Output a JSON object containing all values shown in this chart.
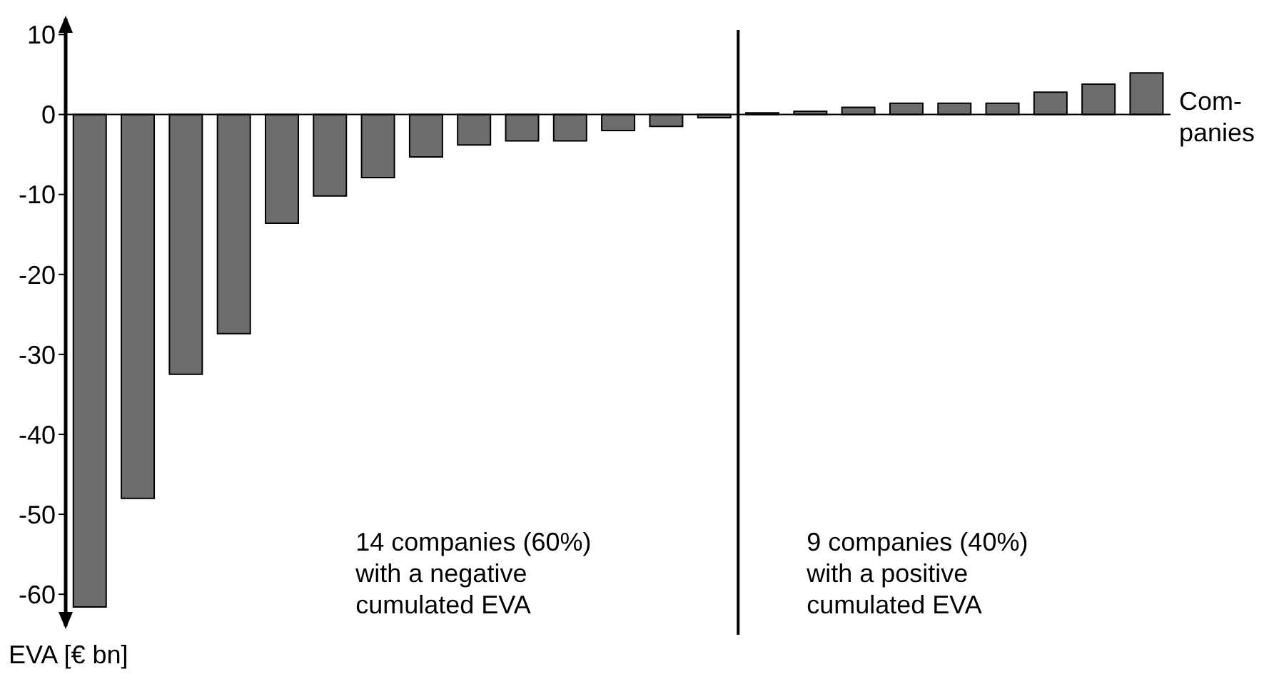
{
  "chart_data": {
    "type": "bar",
    "xlabel": "Com-\npanies",
    "ylabel": "EVA [€ bn]",
    "categories": [
      null,
      null,
      null,
      null,
      null,
      null,
      null,
      null,
      null,
      null,
      null,
      null,
      null,
      null,
      null,
      null,
      null,
      null,
      null,
      null,
      null,
      null,
      null
    ],
    "values": [
      -61.6,
      -48,
      -32.5,
      -27.4,
      -13.6,
      -10.2,
      -7.9,
      -5.3,
      -3.8,
      -3.3,
      -3.3,
      -2.0,
      -1.5,
      -0.4,
      0.2,
      0.4,
      0.9,
      1.4,
      1.4,
      1.4,
      2.8,
      3.8,
      5.2
    ],
    "color": "#6d6d6d",
    "ylim": [
      -64,
      12
    ],
    "yticks": [
      -60,
      -50,
      -40,
      -30,
      -20,
      -10,
      0,
      10
    ],
    "grid": false,
    "legend": false,
    "annotations": [
      "14 companies (60%)\nwith a negative\ncumulated EVA",
      "9 companies (40%)\nwith a positive\ncumulated EVA"
    ]
  }
}
